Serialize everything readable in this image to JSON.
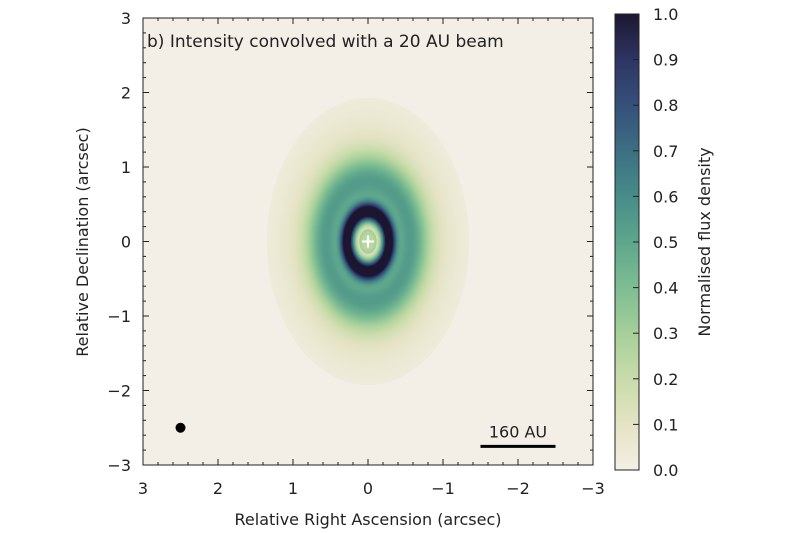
{
  "chart_data": {
    "type": "heatmap",
    "title": "b) Intensity convolved with a 20 AU beam",
    "xlabel": "Relative Right Ascension (arcsec)",
    "ylabel": "Relative Declination (arcsec)",
    "xlim": [
      3,
      -3
    ],
    "ylim": [
      -3,
      3
    ],
    "xticks": [
      3,
      2,
      1,
      0,
      -1,
      -2,
      -3
    ],
    "xtick_labels": [
      "3",
      "2",
      "1",
      "0",
      "−1",
      "−2",
      "−3"
    ],
    "yticks": [
      -3,
      -2,
      -1,
      0,
      1,
      2,
      3
    ],
    "ytick_labels": [
      "−3",
      "−2",
      "−1",
      "0",
      "1",
      "2",
      "3"
    ],
    "colorbar": {
      "label": "Normalised flux density",
      "range": [
        0.0,
        1.0
      ],
      "ticks": [
        0.0,
        0.1,
        0.2,
        0.3,
        0.4,
        0.5,
        0.6,
        0.7,
        0.8,
        0.9,
        1.0
      ],
      "tick_labels": [
        "0.0",
        "0.1",
        "0.2",
        "0.3",
        "0.4",
        "0.5",
        "0.6",
        "0.7",
        "0.8",
        "0.9",
        "1.0"
      ]
    },
    "colormap": [
      "#f4efe6",
      "#e4e3c4",
      "#c8dcaa",
      "#a6cf9a",
      "#7dbd92",
      "#5ea68c",
      "#478c88",
      "#3c6f82",
      "#35507a",
      "#2e3563",
      "#1c1731"
    ],
    "center_marker": {
      "x": 0,
      "y": 0,
      "symbol": "+"
    },
    "beam": {
      "x": 2.5,
      "y": -2.5
    },
    "scale_bar": {
      "label": "160 AU",
      "x_from": -1.5,
      "x_to": -2.5,
      "y": -2.75
    },
    "emission_rings": [
      {
        "name": "inner ring",
        "x_radius": 0.28,
        "y_radius": 0.4,
        "value": 1.0
      },
      {
        "name": "outer ring",
        "x_radius": 0.72,
        "y_radius": 1.0,
        "value": 0.45
      },
      {
        "name": "halo",
        "x_radius": 1.35,
        "y_radius": 1.8,
        "value": 0.05
      }
    ],
    "grid": false
  }
}
